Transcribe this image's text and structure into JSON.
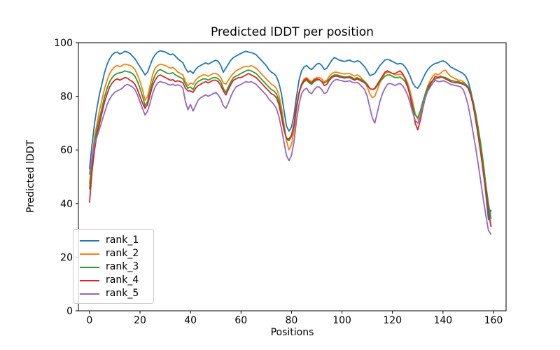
{
  "chart_data": {
    "type": "line",
    "title": "Predicted lDDT per position",
    "xlabel": "Positions",
    "ylabel": "Predicted lDDT",
    "xlim": [
      -4.4,
      165
    ],
    "ylim": [
      0,
      100
    ],
    "xticks": [
      0,
      20,
      40,
      60,
      80,
      100,
      120,
      140,
      160
    ],
    "yticks": [
      0,
      20,
      40,
      60,
      80,
      100
    ],
    "grid": false,
    "legend_position": "lower left",
    "x_start": 0,
    "x_step": 1,
    "n_points": 160,
    "series": [
      {
        "name": "rank_1",
        "color": "#1f77b4",
        "values": [
          53,
          62,
          70,
          76,
          81,
          85,
          89,
          92,
          94,
          95.5,
          96.3,
          96.5,
          95.8,
          96.2,
          96.8,
          96.5,
          96,
          95,
          94,
          92.5,
          91,
          89.5,
          88,
          89,
          91.5,
          94,
          95.5,
          96.5,
          97,
          96.8,
          96.5,
          96,
          95.5,
          95.8,
          95,
          94,
          93.2,
          92.5,
          90.5,
          89,
          89.5,
          88.5,
          90,
          91,
          91.5,
          92,
          92.5,
          92,
          92.5,
          93,
          93.5,
          93,
          91.5,
          89,
          90.5,
          92,
          93.5,
          94.5,
          95,
          95.5,
          96,
          96.5,
          96.8,
          96.5,
          96.3,
          96,
          95.5,
          94.5,
          93.5,
          92.5,
          91.5,
          90,
          89,
          88.5,
          87.5,
          85,
          81,
          75,
          69,
          67,
          68.5,
          73,
          80,
          86,
          89.5,
          91,
          91.5,
          90.5,
          90,
          91,
          92,
          92.3,
          91.5,
          90,
          90.5,
          92,
          93.5,
          94.5,
          94,
          93.5,
          93.2,
          93,
          93.3,
          93.5,
          93,
          92.8,
          93.2,
          93,
          92,
          91,
          89.5,
          87.8,
          88,
          88.5,
          90,
          91.5,
          92.5,
          93.5,
          93.8,
          93.5,
          93,
          92.5,
          92,
          92.3,
          92,
          91,
          89.5,
          87.5,
          85,
          83.5,
          83,
          84.5,
          86.5,
          88.5,
          90,
          91,
          91.8,
          92.3,
          92.5,
          93,
          93.2,
          92.8,
          92,
          91,
          90.5,
          90,
          89.5,
          89,
          88.5,
          87.5,
          85.5,
          82,
          77.5,
          72,
          66,
          59.5,
          52,
          43.5,
          34,
          37.5
        ]
      },
      {
        "name": "rank_2",
        "color": "#ff7f0e",
        "values": [
          47.5,
          57,
          65,
          70,
          75,
          79,
          83,
          86,
          88.5,
          90,
          91,
          91.5,
          91,
          91.5,
          92,
          91.8,
          91.5,
          91,
          90,
          88,
          85.5,
          82.5,
          78.5,
          80,
          84,
          88,
          90.5,
          91.5,
          92,
          91.8,
          91.5,
          91,
          90.5,
          90.8,
          90,
          89,
          88.5,
          88,
          85.5,
          84,
          85,
          84.5,
          86,
          87,
          87.5,
          88,
          88,
          87.5,
          88,
          88.5,
          88.5,
          88,
          87,
          85,
          84.5,
          86,
          87.5,
          88.5,
          89.5,
          90,
          90.5,
          91,
          91.2,
          91,
          91.5,
          91,
          90.5,
          89.5,
          88.5,
          87.5,
          86.5,
          85.5,
          84.5,
          84,
          83,
          80.5,
          76,
          70,
          63.5,
          60,
          62,
          67,
          75,
          81,
          84.5,
          86.5,
          87,
          86,
          85.5,
          86.5,
          87,
          87,
          86.5,
          85.5,
          86,
          87.5,
          88.5,
          89,
          89,
          88.7,
          88.5,
          88.3,
          88.5,
          88.5,
          88,
          87.5,
          88,
          87.5,
          86.5,
          85.5,
          83.5,
          81,
          79.5,
          80,
          82.5,
          85,
          87,
          88.5,
          89,
          89,
          88.5,
          88,
          88,
          88.3,
          88,
          87,
          85,
          82,
          78,
          73.5,
          71.5,
          74,
          77.5,
          81,
          84,
          86,
          87.5,
          88.5,
          88,
          88.5,
          89.5,
          89.8,
          88.5,
          87.5,
          87,
          86.5,
          86,
          86,
          85.5,
          84.5,
          83,
          80.5,
          76.5,
          71.5,
          65.5,
          59,
          52,
          45,
          37.5,
          31.5
        ]
      },
      {
        "name": "rank_3",
        "color": "#2ca02c",
        "values": [
          45.5,
          55,
          63,
          68,
          72,
          76,
          80,
          83,
          85.5,
          87,
          88,
          88.5,
          88.8,
          89,
          89.5,
          89.2,
          89,
          88.5,
          87.5,
          85.5,
          83,
          80,
          76.5,
          78,
          82,
          85.5,
          88,
          89.5,
          90,
          89.5,
          89,
          88.5,
          88.5,
          88.8,
          88,
          87.5,
          87,
          86.5,
          84.5,
          83,
          83.5,
          82.5,
          84.5,
          85.5,
          86,
          86.5,
          86.5,
          86,
          86.5,
          87,
          87,
          86.5,
          85.5,
          83,
          81.5,
          83.5,
          85.5,
          87,
          87.5,
          88,
          88.5,
          89,
          89.5,
          89.8,
          89.5,
          89,
          88.5,
          87.5,
          86.5,
          85.5,
          84.5,
          83.5,
          82.5,
          82,
          81,
          78.5,
          74,
          68.5,
          64,
          63.5,
          65,
          69,
          76,
          81,
          84,
          85.5,
          86,
          85,
          84.5,
          85.5,
          86,
          86.2,
          85.5,
          85,
          85.5,
          86.5,
          87.5,
          88,
          88,
          87.7,
          87.5,
          87.2,
          87.3,
          87.5,
          87,
          86.5,
          87,
          86.5,
          86,
          85.5,
          84.5,
          83,
          82.5,
          82.8,
          84,
          85.5,
          86.5,
          87.5,
          88,
          88,
          87.5,
          87,
          87,
          87.2,
          86.5,
          85.5,
          83.5,
          80.5,
          76.5,
          73,
          72,
          74.5,
          78,
          81,
          83.5,
          85,
          86,
          86.5,
          86.8,
          87,
          87.2,
          87,
          86.5,
          86,
          85.8,
          85.5,
          85.5,
          85.2,
          85,
          84.5,
          83.5,
          81.5,
          78,
          73.5,
          68,
          62,
          55,
          47,
          40,
          34.5
        ]
      },
      {
        "name": "rank_4",
        "color": "#d62728",
        "values": [
          40.5,
          52,
          60,
          66,
          70,
          74,
          78,
          81,
          83.5,
          85,
          86,
          86.5,
          86,
          86.5,
          87,
          86.8,
          86,
          85.5,
          84.5,
          82.5,
          80,
          77.5,
          75.5,
          77,
          80.5,
          84,
          86,
          87.5,
          88,
          87.5,
          87,
          86.5,
          86,
          86.2,
          85.5,
          85.8,
          85.5,
          85,
          83,
          82,
          82,
          81.5,
          83,
          84,
          84.5,
          85,
          85.5,
          85,
          85.5,
          86,
          86,
          85.5,
          84,
          82,
          80.5,
          82.5,
          84.5,
          86,
          86.5,
          87,
          87,
          87.5,
          88,
          88.5,
          88,
          87.5,
          87,
          86,
          85,
          84,
          83,
          82,
          81,
          80.5,
          79.5,
          77,
          72.5,
          67.5,
          64.5,
          64,
          65.5,
          69.5,
          76.5,
          81.5,
          84.5,
          86,
          86.5,
          85.5,
          85,
          86,
          86.5,
          86.3,
          85.5,
          84,
          84.5,
          86,
          87,
          87.5,
          87.5,
          87.2,
          87,
          86.8,
          87,
          87,
          86.5,
          86,
          86.5,
          86,
          85.5,
          85,
          84,
          83,
          82.5,
          83,
          84.5,
          86,
          87.5,
          89,
          89.5,
          89,
          88.5,
          88.5,
          89,
          89.5,
          88.5,
          86.5,
          84,
          80,
          75,
          70,
          67.5,
          71,
          75.5,
          79.5,
          82.5,
          84.5,
          86,
          87.5,
          87,
          87.5,
          87,
          86.5,
          86,
          85.5,
          85.2,
          85,
          85,
          84.8,
          84.5,
          84,
          83,
          80.5,
          76.5,
          71,
          65,
          58.5,
          51.5,
          44.5,
          37,
          31.5
        ]
      },
      {
        "name": "rank_5",
        "color": "#9467bd",
        "values": [
          51,
          57,
          62,
          65,
          68,
          71,
          74,
          77,
          79,
          80.5,
          81.5,
          82,
          82.5,
          83,
          84,
          84.5,
          84,
          83.5,
          82.5,
          80.5,
          78,
          75.5,
          73,
          74.5,
          77.5,
          81,
          83.5,
          85,
          85.5,
          85.2,
          85,
          84.5,
          84.2,
          84.5,
          84,
          84.3,
          84,
          83,
          78,
          75,
          77,
          74.5,
          76.5,
          78.5,
          79.5,
          80,
          80.5,
          80,
          80.5,
          81,
          81.5,
          80.5,
          79,
          76.5,
          75.5,
          77.5,
          80,
          82,
          83.5,
          84,
          84.5,
          85,
          85.5,
          85.2,
          85.5,
          85,
          84.5,
          83.5,
          82.5,
          81.5,
          80.5,
          79,
          78,
          77,
          75.5,
          72.5,
          68,
          63,
          58,
          56,
          58,
          63,
          71,
          77,
          81,
          82.5,
          83,
          81.5,
          81,
          82.5,
          83.5,
          83.5,
          82.5,
          81,
          81.5,
          83.5,
          85,
          86,
          86.3,
          86,
          85.8,
          85.5,
          85.6,
          85.8,
          85.3,
          85,
          85.2,
          84.5,
          83.5,
          82.5,
          80,
          76,
          72,
          70,
          74,
          78,
          81,
          83,
          84.5,
          84.8,
          84.5,
          84,
          84.5,
          84.8,
          84,
          82.5,
          80.5,
          77.5,
          74,
          71,
          70,
          72.5,
          76,
          79.5,
          82,
          83.5,
          85,
          86,
          85.5,
          85.5,
          85.8,
          85.5,
          85,
          84.5,
          84.2,
          84,
          83.8,
          83.5,
          82.5,
          80,
          76.5,
          71.5,
          66,
          60.5,
          54.5,
          48,
          41.5,
          35.5,
          30,
          28.5
        ]
      }
    ]
  },
  "colors": {
    "background": "#ffffff",
    "axes_edge": "#000000",
    "tick_text": "#000000",
    "legend_border": "#cccccc"
  }
}
